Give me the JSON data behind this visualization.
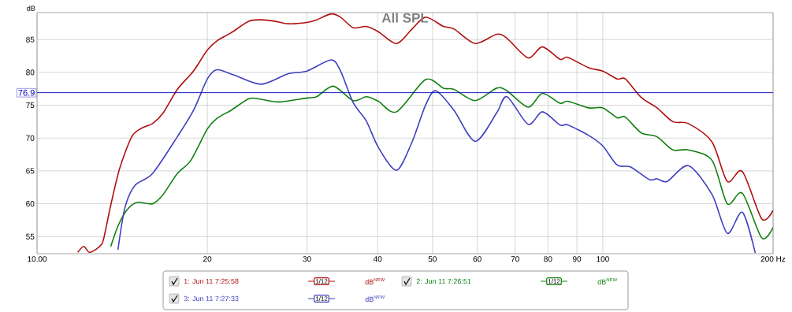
{
  "chart_data": {
    "type": "line",
    "title": "All SPL",
    "ylabel": "dB",
    "xlim": [
      10,
      200
    ],
    "ylim": [
      52.4,
      89.1
    ],
    "log": "x",
    "xticks": [
      {
        "value": 10,
        "label": "10.00"
      },
      20,
      30,
      40,
      50,
      60,
      70,
      80,
      90,
      100,
      {
        "value": 200,
        "label": "200 Hz"
      }
    ],
    "yticks": [
      55,
      60,
      65,
      70,
      75,
      80,
      85
    ],
    "grid": true,
    "legend": "bottom",
    "marker": "none",
    "line_style": "solid",
    "ref_lines": [
      {
        "axis": "y",
        "value": 76.9,
        "label": "76.9",
        "color": "#0000c0"
      }
    ],
    "annotations": [
      "1/12",
      "dB$^{NEW}$",
      "1/12",
      "dB$^{NEW}$",
      "1/12",
      "dB$^{NEW}$"
    ],
    "series": [
      {
        "name": "1: Jun 11 7:25:58",
        "color": "#b01010",
        "x": [
          11.8,
          12.1,
          12.4,
          13.0,
          13.2,
          13.5,
          14.0,
          14.7,
          15.3,
          16.0,
          16.7,
          17.7,
          18.9,
          20,
          20.8,
          22.0,
          23.7,
          24.9,
          26.3,
          27.8,
          30,
          31.2,
          33.1,
          34.4,
          36.2,
          38.2,
          40.1,
          43.2,
          46.0,
          48.6,
          52.3,
          54.6,
          59.5,
          64.9,
          67.7,
          73.8,
          78.2,
          84.0,
          86.7,
          94.4,
          100,
          106,
          109.6,
          116.9,
          124.7,
          133,
          141.7,
          156,
          166,
          176.5,
          191,
          200
        ],
        "values": [
          52.6,
          53.5,
          52.6,
          53.8,
          55.8,
          59.8,
          65.4,
          70.2,
          71.5,
          72.2,
          73.8,
          77.4,
          80.2,
          83.4,
          84.8,
          86.0,
          87.8,
          88.0,
          87.8,
          87.4,
          87.6,
          88.0,
          88.9,
          88.4,
          86.8,
          87.0,
          86.2,
          84.4,
          86.6,
          88.4,
          87.0,
          86.6,
          84.4,
          85.8,
          85.2,
          82.2,
          83.9,
          82.0,
          82.3,
          80.7,
          80.2,
          79.0,
          79.0,
          76.2,
          74.6,
          72.5,
          72.2,
          69.4,
          63.4,
          64.9,
          57.7,
          59.0
        ]
      },
      {
        "name": "2: Jun 11 7:26:51",
        "color": "#108010",
        "x": [
          13.5,
          13.9,
          14.4,
          15.0,
          16.0,
          16.7,
          17.7,
          18.7,
          20,
          20.8,
          22.0,
          23.7,
          24.9,
          26.7,
          30,
          31.2,
          33.4,
          36.2,
          38.2,
          40.1,
          43.2,
          48.6,
          52.3,
          54.6,
          59.5,
          64.9,
          67.7,
          73.8,
          78.2,
          84.0,
          86.7,
          94.4,
          100,
          106,
          109.6,
          116.9,
          124.7,
          133,
          141.7,
          156,
          166,
          176.5,
          191,
          200
        ],
        "values": [
          53.5,
          56.6,
          59.0,
          60.2,
          60.0,
          61.4,
          64.6,
          66.6,
          71.4,
          73.0,
          74.2,
          76.0,
          75.9,
          75.5,
          76.1,
          76.3,
          77.9,
          75.7,
          76.3,
          75.6,
          74.0,
          78.9,
          77.6,
          77.4,
          75.7,
          77.6,
          77.2,
          74.7,
          76.8,
          75.3,
          75.6,
          74.6,
          74.6,
          73.1,
          73.2,
          70.8,
          70.2,
          68.2,
          68.2,
          66.6,
          60.0,
          61.6,
          54.8,
          56.4
        ]
      },
      {
        "name": "3: Jun 11 7:27:33",
        "color": "#4040c0",
        "x": [
          13.9,
          14.3,
          14.9,
          16.0,
          17.7,
          18.9,
          20,
          20.8,
          22.3,
          24.9,
          27.8,
          30,
          33.1,
          34.4,
          36.2,
          38.2,
          40.1,
          43.2,
          46.0,
          48.6,
          50.7,
          54.6,
          59.5,
          64.9,
          67.7,
          73.8,
          78.2,
          84.0,
          86.7,
          94.4,
          100,
          106,
          112,
          120.7,
          124.7,
          130,
          141.7,
          156,
          166,
          176.5,
          186
        ],
        "values": [
          53.0,
          59.4,
          62.8,
          64.6,
          70.2,
          74.2,
          79.0,
          80.4,
          79.6,
          78.2,
          79.8,
          80.2,
          81.9,
          80.2,
          75.4,
          72.6,
          68.6,
          65.1,
          69.4,
          75.0,
          77.2,
          74.2,
          69.5,
          73.8,
          76.3,
          72.1,
          74.0,
          72.0,
          72.0,
          70.4,
          68.8,
          65.9,
          65.6,
          63.7,
          63.8,
          63.4,
          65.8,
          61.4,
          55.5,
          58.7,
          52.5
        ]
      }
    ]
  }
}
